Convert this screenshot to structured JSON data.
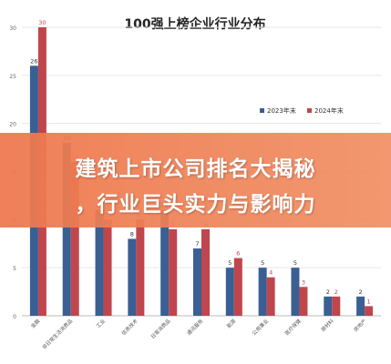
{
  "colors": {
    "series_2023": "#3a5f93",
    "series_2024": "#c0464d",
    "background": "#ffffff",
    "banner": "#ee7b4f"
  },
  "banner": {
    "line1": "建筑上市公司排名大揭秘",
    "line2": "，行业巨头实力与影响力"
  },
  "chart_data": {
    "type": "bar",
    "title": "100强上榜企业行业分布",
    "categories": [
      "金融",
      "非日常生活消费品",
      "工业",
      "信息技术",
      "日常消费品",
      "通讯服务",
      "能源",
      "公用事业",
      "医疗保健",
      "原材料",
      "房地产"
    ],
    "series": [
      {
        "name": "2023年末",
        "values": [
          26,
          18,
          11,
          8,
          11,
          7,
          5,
          5,
          5,
          2,
          2
        ]
      },
      {
        "name": "2024年末",
        "values": [
          30,
          16,
          10,
          10,
          9,
          9,
          6,
          4,
          3,
          2,
          1
        ]
      }
    ],
    "ylim": [
      0,
      30
    ],
    "yticks": [
      0,
      5,
      10,
      15,
      20,
      25,
      30
    ],
    "legend": "right",
    "grid": true
  }
}
